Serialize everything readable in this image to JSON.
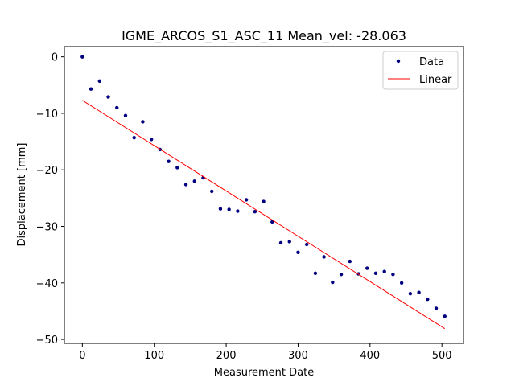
{
  "chart_data": {
    "type": "scatter",
    "title": "IGME_ARCOS_S1_ASC_11 Mean_vel: -28.063",
    "xlabel": "Measurement Date",
    "ylabel": "Displacement [mm]",
    "xlim": [
      -25,
      530
    ],
    "ylim": [
      -50.7,
      1.8
    ],
    "xticks": [
      0,
      100,
      200,
      300,
      400,
      500
    ],
    "yticks": [
      0,
      -10,
      -20,
      -30,
      -40,
      -50
    ],
    "xtick_labels": [
      "0",
      "100",
      "200",
      "300",
      "400",
      "500"
    ],
    "ytick_labels": [
      "0",
      "−10",
      "−20",
      "−30",
      "−40",
      "−50"
    ],
    "legend_position": "top-right",
    "series": [
      {
        "name": "Data",
        "kind": "points",
        "color": "#000080",
        "x": [
          0,
          12,
          24,
          36,
          48,
          60,
          72,
          84,
          96,
          108,
          120,
          132,
          144,
          156,
          168,
          180,
          192,
          204,
          216,
          228,
          240,
          252,
          264,
          276,
          288,
          300,
          312,
          324,
          336,
          348,
          360,
          372,
          384,
          396,
          408,
          420,
          432,
          444,
          456,
          468,
          480,
          492,
          504
        ],
        "y": [
          0,
          -5.7,
          -4.3,
          -7.1,
          -9.0,
          -10.4,
          -14.3,
          -11.5,
          -14.6,
          -16.4,
          -18.5,
          -19.6,
          -22.6,
          -22.0,
          -21.4,
          -23.8,
          -26.9,
          -27.0,
          -27.3,
          -25.3,
          -27.4,
          -25.6,
          -29.2,
          -32.9,
          -32.7,
          -34.6,
          -33.2,
          -38.3,
          -35.4,
          -39.9,
          -38.5,
          -36.2,
          -38.4,
          -37.4,
          -38.3,
          -38.0,
          -38.5,
          -40.0,
          -41.9,
          -41.7,
          -42.9,
          -44.5,
          -45.9
        ]
      },
      {
        "name": "Linear",
        "kind": "line",
        "color": "#ff0000",
        "x": [
          0,
          504
        ],
        "y": [
          -7.7,
          -48.1
        ]
      }
    ]
  }
}
